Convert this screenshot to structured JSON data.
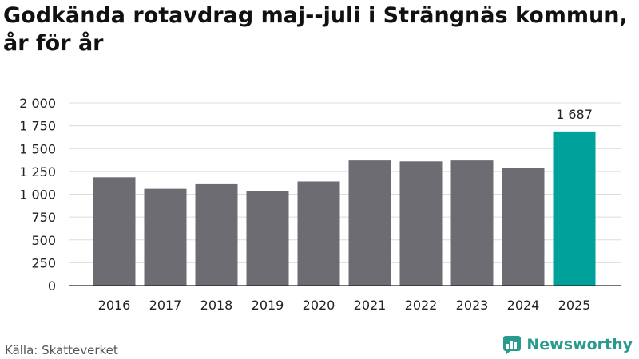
{
  "title": "Godkända rotavdrag maj--juli i Strängnäs kommun, år för år",
  "source": "Källa: Skatteverket",
  "brand": "Newsworthy",
  "colors": {
    "bar": "#6d6c72",
    "highlight": "#00a19a",
    "grid": "#dcdcdc",
    "brand": "#2a9a8c"
  },
  "chart_data": {
    "type": "bar",
    "title": "Godkända rotavdrag maj--juli i Strängnäs kommun, år för år",
    "xlabel": "",
    "ylabel": "",
    "categories": [
      "2016",
      "2017",
      "2018",
      "2019",
      "2020",
      "2021",
      "2022",
      "2023",
      "2024",
      "2025"
    ],
    "values": [
      1185,
      1060,
      1110,
      1035,
      1140,
      1370,
      1360,
      1370,
      1290,
      1687
    ],
    "ylim": [
      0,
      2000
    ],
    "yticks": [
      0,
      250,
      500,
      750,
      1000,
      1250,
      1500,
      1750,
      2000
    ],
    "ytick_labels": [
      "0",
      "250",
      "500",
      "750",
      "1 000",
      "1 250",
      "1 500",
      "1 750",
      "2 000"
    ],
    "highlight_index": 9,
    "highlight_label": "1 687",
    "grid": true,
    "legend": "none"
  }
}
